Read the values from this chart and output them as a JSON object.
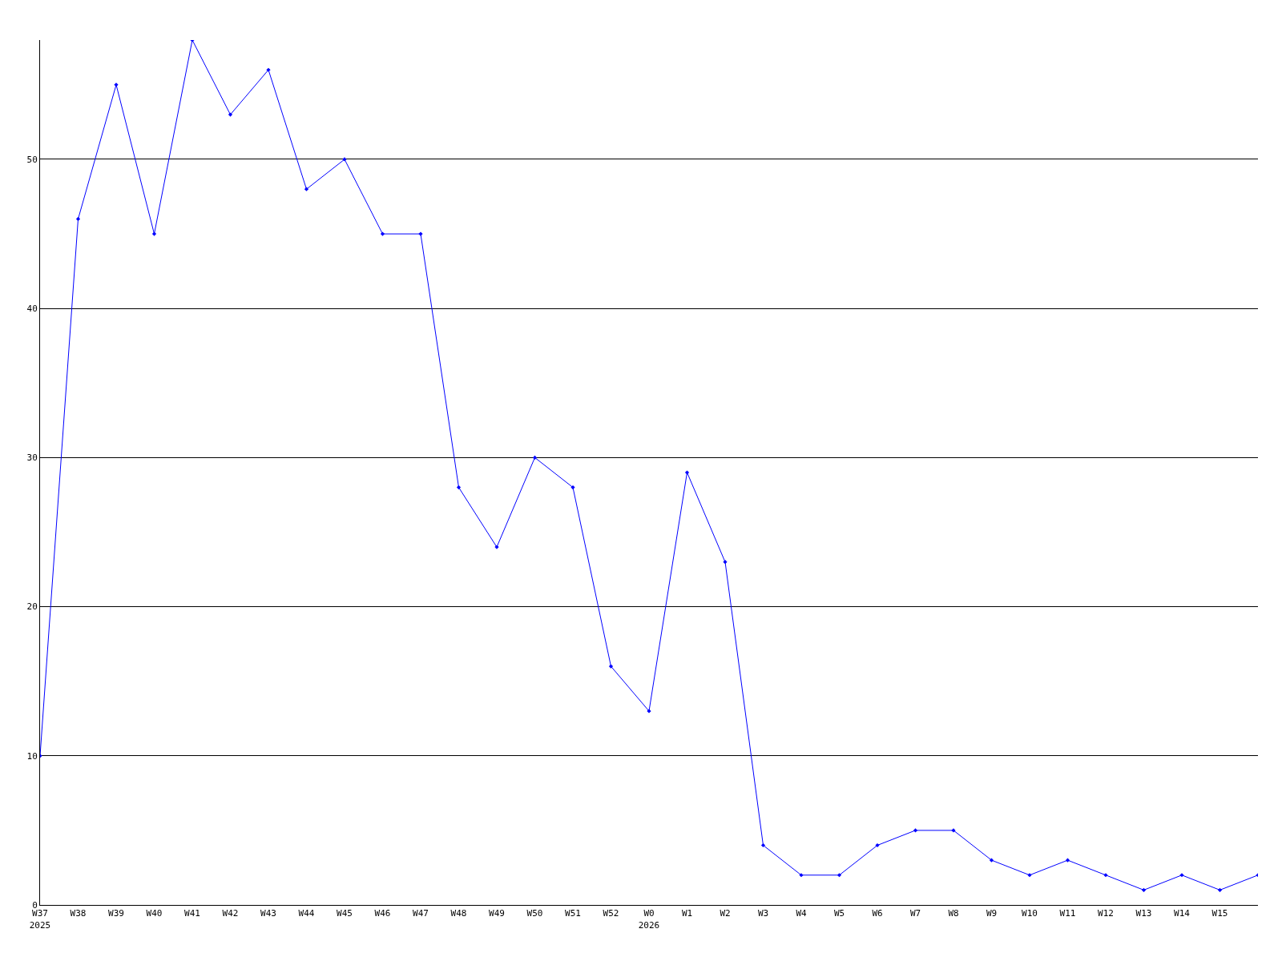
{
  "chart_data": {
    "type": "line",
    "categories": [
      "W37\n2025",
      "W38",
      "W39",
      "W40",
      "W41",
      "W42",
      "W43",
      "W44",
      "W45",
      "W46",
      "W47",
      "W48",
      "W49",
      "W50",
      "W51",
      "W52",
      "W0\n2026",
      "W1",
      "W2",
      "W3",
      "W4",
      "W5",
      "W6",
      "W7",
      "W8",
      "W9",
      "W10",
      "W11",
      "W12",
      "W13",
      "W14",
      "W15",
      null
    ],
    "series": [
      {
        "color": "#0000ff",
        "values": [
          10,
          46,
          55,
          45,
          58,
          53,
          56,
          48,
          50,
          45,
          45,
          28,
          24,
          30,
          28,
          16,
          13,
          29,
          23,
          4,
          2,
          2,
          4,
          5,
          5,
          3,
          2,
          3,
          2,
          1,
          2,
          1,
          2
        ]
      }
    ],
    "ylim": [
      0,
      58
    ],
    "yticks": [
      0,
      10,
      20,
      30,
      40,
      50
    ],
    "grid": "y",
    "marker": "diamond",
    "line_style": "solid",
    "legend": false
  }
}
